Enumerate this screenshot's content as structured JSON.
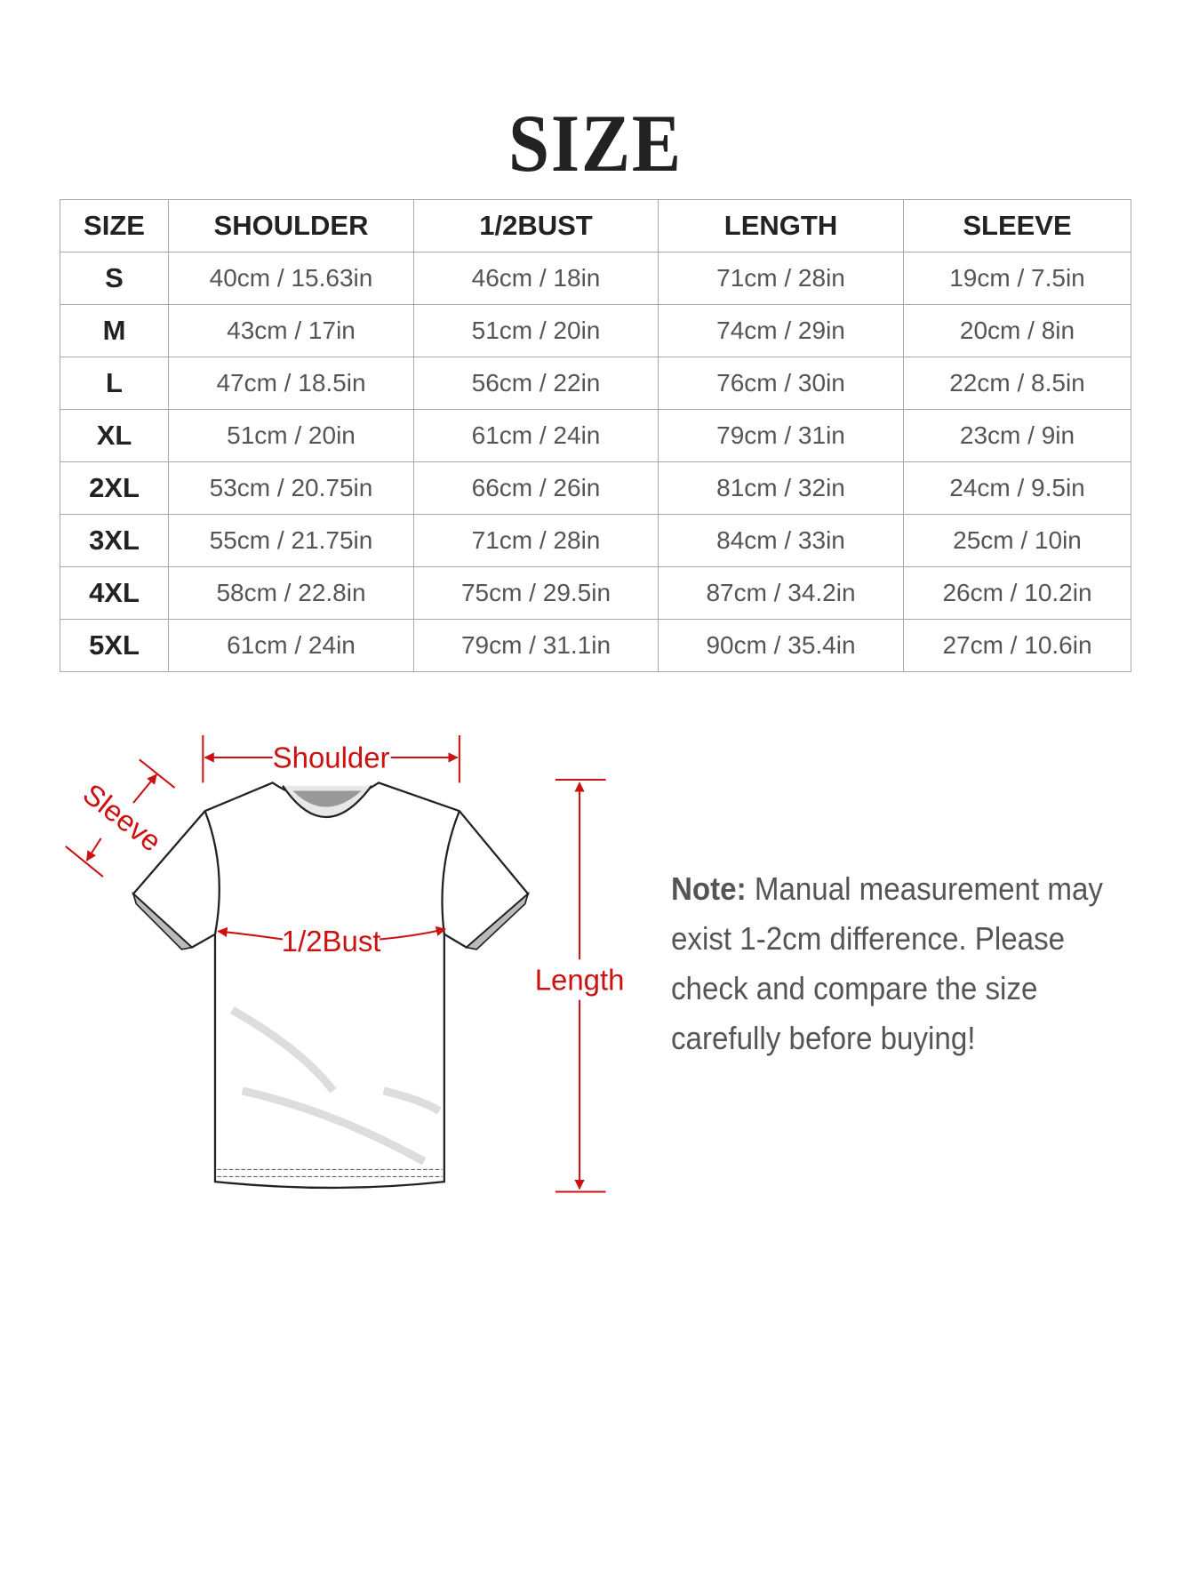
{
  "title": "SIZE",
  "table": {
    "headers": [
      "SIZE",
      "SHOULDER",
      "1/2BUST",
      "LENGTH",
      "SLEEVE"
    ],
    "rows": [
      [
        "S",
        "40cm / 15.63in",
        "46cm / 18in",
        "71cm / 28in",
        "19cm / 7.5in"
      ],
      [
        "M",
        "43cm / 17in",
        "51cm / 20in",
        "74cm / 29in",
        "20cm / 8in"
      ],
      [
        "L",
        "47cm / 18.5in",
        "56cm / 22in",
        "76cm / 30in",
        "22cm / 8.5in"
      ],
      [
        "XL",
        "51cm / 20in",
        "61cm / 24in",
        "79cm / 31in",
        "23cm / 9in"
      ],
      [
        "2XL",
        "53cm / 20.75in",
        "66cm / 26in",
        "81cm / 32in",
        "24cm / 9.5in"
      ],
      [
        "3XL",
        "55cm / 21.75in",
        "71cm / 28in",
        "84cm / 33in",
        "25cm / 10in"
      ],
      [
        "4XL",
        "58cm / 22.8in",
        "75cm / 29.5in",
        "87cm / 34.2in",
        "26cm / 10.2in"
      ],
      [
        "5XL",
        "61cm / 24in",
        "79cm / 31.1in",
        "90cm / 35.4in",
        "27cm / 10.6in"
      ]
    ]
  },
  "diagram": {
    "labels": {
      "shoulder": "Shoulder",
      "sleeve": "Sleeve",
      "bust": "1/2Bust",
      "length": "Length"
    },
    "accent_color": "#cc1111",
    "icon": "tshirt-outline"
  },
  "note": {
    "label": "Note:",
    "text": "Manual measurement may exist 1-2cm difference. Please check and compare the size carefully before buying!"
  }
}
